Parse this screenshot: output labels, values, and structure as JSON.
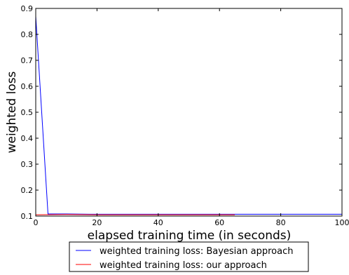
{
  "chart_data": {
    "type": "line",
    "title": "",
    "xlabel": "elapsed training time (in seconds)",
    "ylabel": "weighted loss",
    "xlim": [
      0,
      100
    ],
    "ylim": [
      0.1,
      0.9
    ],
    "xticks": [
      0,
      20,
      40,
      60,
      80,
      100
    ],
    "yticks": [
      0.1,
      0.2,
      0.3,
      0.4,
      0.5,
      0.6,
      0.7,
      0.8,
      0.9
    ],
    "xtick_labels": [
      "0",
      "20",
      "40",
      "60",
      "80",
      "100"
    ],
    "ytick_labels": [
      "0.1",
      "0.2",
      "0.3",
      "0.4",
      "0.5",
      "0.6",
      "0.7",
      "0.8",
      "0.9"
    ],
    "grid": false,
    "legend_position": "bottom-center-outside",
    "series": [
      {
        "name": "weighted training loss: Bayesian approach",
        "color": "#0000ff",
        "x": [
          0,
          4,
          10,
          20,
          40,
          60,
          80,
          100
        ],
        "y": [
          0.87,
          0.108,
          0.108,
          0.107,
          0.107,
          0.107,
          0.107,
          0.107
        ]
      },
      {
        "name": "weighted training loss: our approach",
        "color": "#ff0000",
        "x": [
          0,
          10,
          20,
          40,
          65
        ],
        "y": [
          0.105,
          0.106,
          0.105,
          0.105,
          0.105
        ]
      }
    ]
  }
}
